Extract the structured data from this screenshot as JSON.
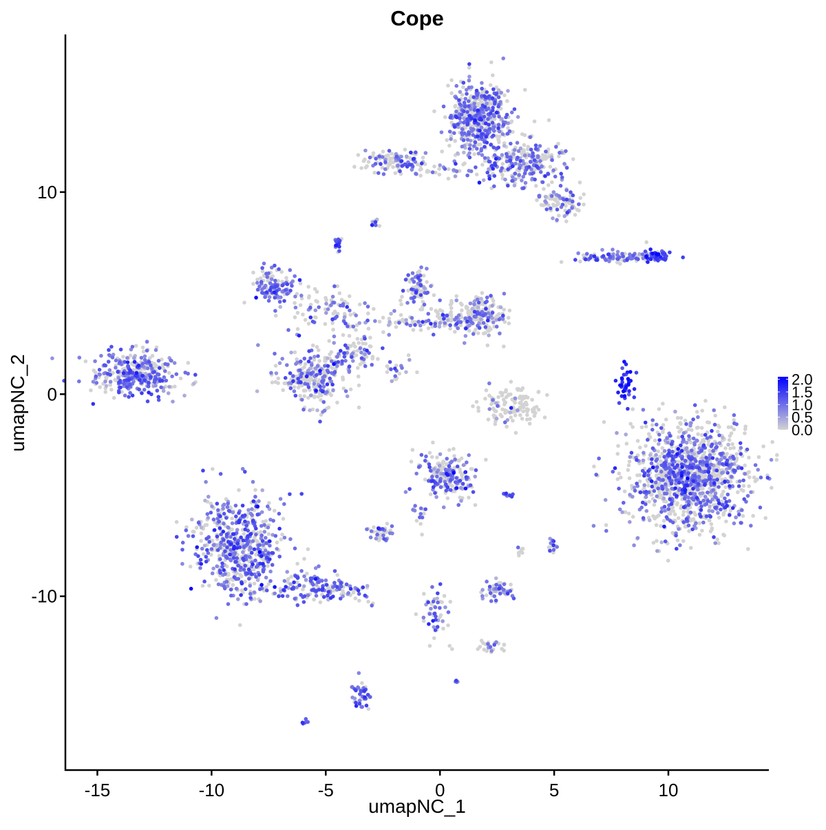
{
  "chart_data": {
    "type": "scatter",
    "title": "Cope",
    "xlabel": "umapNC_1",
    "ylabel": "umapNC_2",
    "xlim": [
      -16.4,
      14.4
    ],
    "ylim": [
      -18.6,
      17.8
    ],
    "xticks": [
      -15,
      -10,
      -5,
      0,
      5,
      10
    ],
    "yticks": [
      -10,
      0,
      10
    ],
    "xtick_labels": [
      "-15",
      "-10",
      "-5",
      "0",
      "5",
      "10"
    ],
    "ytick_labels": [
      "-10",
      "0",
      "10"
    ],
    "grid": false,
    "legend": {
      "placement": "right",
      "type": "colorbar",
      "range": [
        0,
        2.1
      ],
      "ticks": [
        0,
        0.5,
        1,
        1.5,
        2
      ],
      "tick_labels": [
        "0.0",
        "0.5",
        "1.0",
        "1.5",
        "2.0"
      ],
      "low_color": "#D3D3D3",
      "high_color": "#0000FF"
    },
    "note_clusters": "approximate point clouds: center [x,y], spread [sx,sy], n points, fraction expressing, mean expression",
    "clusters": [
      {
        "center": [
          -13.2,
          1.0
        ],
        "spread": [
          0.9,
          0.55
        ],
        "n": 350,
        "frac": 0.6,
        "expr": 1.0
      },
      {
        "center": [
          1.7,
          13.7
        ],
        "spread": [
          0.65,
          0.85
        ],
        "n": 500,
        "frac": 0.5,
        "expr": 1.0
      },
      {
        "center": [
          3.7,
          11.4
        ],
        "spread": [
          0.9,
          0.55
        ],
        "n": 260,
        "frac": 0.45,
        "expr": 0.95
      },
      {
        "center": [
          5.3,
          9.6
        ],
        "spread": [
          0.45,
          0.35
        ],
        "n": 90,
        "frac": 0.35,
        "expr": 0.9
      },
      {
        "center": [
          -2.0,
          11.5
        ],
        "spread": [
          0.75,
          0.3
        ],
        "n": 110,
        "frac": 0.5,
        "expr": 0.95
      },
      {
        "center": [
          0.3,
          11.1
        ],
        "spread": [
          0.8,
          0.15
        ],
        "n": 35,
        "frac": 0.3,
        "expr": 0.9
      },
      {
        "center": [
          -2.8,
          8.5
        ],
        "spread": [
          0.1,
          0.1
        ],
        "n": 10,
        "frac": 0.7,
        "expr": 0.9
      },
      {
        "center": [
          -4.5,
          7.4
        ],
        "spread": [
          0.12,
          0.2
        ],
        "n": 15,
        "frac": 0.8,
        "expr": 1.1
      },
      {
        "center": [
          8.0,
          6.8
        ],
        "spread": [
          1.0,
          0.15
        ],
        "n": 90,
        "frac": 0.6,
        "expr": 1.0
      },
      {
        "center": [
          9.5,
          6.9
        ],
        "spread": [
          0.3,
          0.2
        ],
        "n": 50,
        "frac": 0.8,
        "expr": 1.3
      },
      {
        "center": [
          -7.2,
          5.3
        ],
        "spread": [
          0.45,
          0.45
        ],
        "n": 110,
        "frac": 0.6,
        "expr": 1.0
      },
      {
        "center": [
          -5.0,
          4.2
        ],
        "spread": [
          0.9,
          0.5
        ],
        "n": 90,
        "frac": 0.45,
        "expr": 0.9
      },
      {
        "center": [
          -1.0,
          5.3
        ],
        "spread": [
          0.3,
          0.55
        ],
        "n": 80,
        "frac": 0.55,
        "expr": 1.0
      },
      {
        "center": [
          1.8,
          3.9
        ],
        "spread": [
          0.6,
          0.45
        ],
        "n": 190,
        "frac": 0.3,
        "expr": 0.85
      },
      {
        "center": [
          -0.8,
          3.6
        ],
        "spread": [
          1.4,
          0.25
        ],
        "n": 110,
        "frac": 0.45,
        "expr": 0.95
      },
      {
        "center": [
          -5.5,
          0.8
        ],
        "spread": [
          0.75,
          0.7
        ],
        "n": 260,
        "frac": 0.45,
        "expr": 0.95
      },
      {
        "center": [
          -3.7,
          2.0
        ],
        "spread": [
          0.45,
          0.6
        ],
        "n": 70,
        "frac": 0.5,
        "expr": 1.0
      },
      {
        "center": [
          -1.8,
          1.3
        ],
        "spread": [
          0.35,
          0.3
        ],
        "n": 20,
        "frac": 0.5,
        "expr": 0.9
      },
      {
        "center": [
          3.2,
          -0.6
        ],
        "spread": [
          0.6,
          0.45
        ],
        "n": 130,
        "frac": 0.1,
        "expr": 0.7
      },
      {
        "center": [
          8.1,
          0.4
        ],
        "spread": [
          0.2,
          0.5
        ],
        "n": 40,
        "frac": 0.95,
        "expr": 1.6
      },
      {
        "center": [
          10.9,
          -4.0
        ],
        "spread": [
          1.3,
          1.35
        ],
        "n": 1200,
        "frac": 0.45,
        "expr": 1.0
      },
      {
        "center": [
          -8.8,
          -7.5
        ],
        "spread": [
          0.95,
          1.2
        ],
        "n": 620,
        "frac": 0.6,
        "expr": 1.05
      },
      {
        "center": [
          -5.3,
          -9.6
        ],
        "spread": [
          1.0,
          0.45
        ],
        "n": 160,
        "frac": 0.55,
        "expr": 1.0
      },
      {
        "center": [
          0.3,
          -3.9
        ],
        "spread": [
          0.55,
          0.6
        ],
        "n": 200,
        "frac": 0.5,
        "expr": 1.0
      },
      {
        "center": [
          -2.6,
          -6.9
        ],
        "spread": [
          0.25,
          0.2
        ],
        "n": 40,
        "frac": 0.5,
        "expr": 0.95
      },
      {
        "center": [
          2.6,
          -9.7
        ],
        "spread": [
          0.35,
          0.25
        ],
        "n": 55,
        "frac": 0.5,
        "expr": 0.9
      },
      {
        "center": [
          -0.2,
          -10.6
        ],
        "spread": [
          0.3,
          0.8
        ],
        "n": 50,
        "frac": 0.55,
        "expr": 1.0
      },
      {
        "center": [
          2.2,
          -12.5
        ],
        "spread": [
          0.35,
          0.15
        ],
        "n": 25,
        "frac": 0.4,
        "expr": 0.9
      },
      {
        "center": [
          -3.4,
          -14.8
        ],
        "spread": [
          0.2,
          0.5
        ],
        "n": 40,
        "frac": 0.7,
        "expr": 1.05
      },
      {
        "center": [
          -5.9,
          -16.2
        ],
        "spread": [
          0.08,
          0.05
        ],
        "n": 5,
        "frac": 1.0,
        "expr": 1.2
      },
      {
        "center": [
          5.0,
          -7.5
        ],
        "spread": [
          0.12,
          0.3
        ],
        "n": 15,
        "frac": 0.6,
        "expr": 1.0
      },
      {
        "center": [
          3.0,
          -5.0
        ],
        "spread": [
          0.12,
          0.08
        ],
        "n": 10,
        "frac": 0.8,
        "expr": 1.1
      },
      {
        "center": [
          0.7,
          -14.2
        ],
        "spread": [
          0.05,
          0.05
        ],
        "n": 5,
        "frac": 1.0,
        "expr": 1.0
      },
      {
        "center": [
          -1.0,
          -6.0
        ],
        "spread": [
          0.2,
          0.4
        ],
        "n": 15,
        "frac": 0.6,
        "expr": 1.0
      },
      {
        "center": [
          3.5,
          -7.6
        ],
        "spread": [
          0.08,
          0.2
        ],
        "n": 8,
        "frac": 0.3,
        "expr": 0.8
      }
    ]
  }
}
